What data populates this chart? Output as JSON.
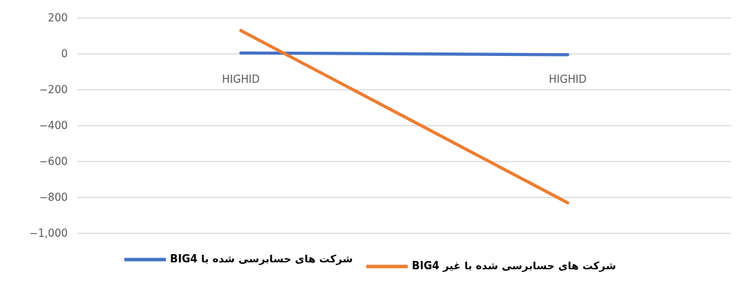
{
  "chart_data": {
    "type": "line",
    "categories": [
      "HIGHID",
      "HIGHID"
    ],
    "series": [
      {
        "name": "شرکت های حسابرسی شده با BIG4",
        "color": "#4472c4",
        "values": [
          5,
          -5
        ]
      },
      {
        "name": "شرکت های حسابرسی شده با غیر BIG4",
        "color": "#ed7d31",
        "values": [
          130,
          -830
        ]
      }
    ],
    "ylim": [
      -1000,
      200
    ],
    "yticks": [
      {
        "value": 200,
        "label": "200"
      },
      {
        "value": 0,
        "label": "0"
      },
      {
        "value": -200,
        "label": "−200"
      },
      {
        "value": -400,
        "label": "−400"
      },
      {
        "value": -600,
        "label": "−600"
      },
      {
        "value": -800,
        "label": "−800"
      },
      {
        "value": -1000,
        "label": "−1,000"
      }
    ],
    "grid": "y",
    "legend": "bottom",
    "marker": "none",
    "line_style": "solid"
  }
}
